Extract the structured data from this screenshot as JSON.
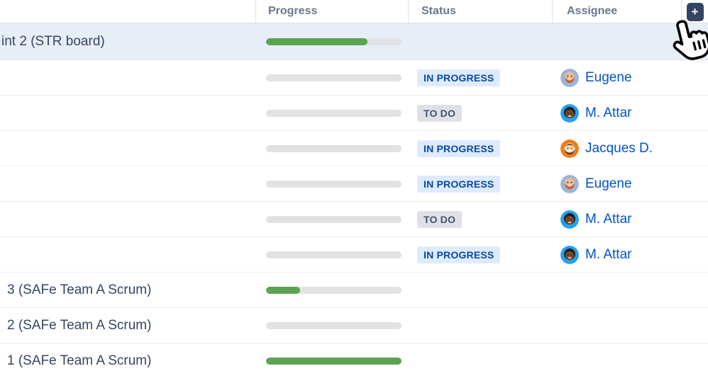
{
  "header": {
    "columns": {
      "name": "",
      "progress": "Progress",
      "status": "Status",
      "assignee": "Assignee"
    },
    "add_button_label": "+"
  },
  "rows": [
    {
      "type": "sprint",
      "label": "int 2 (STR board)",
      "progress": 75,
      "selected": true
    },
    {
      "type": "issue",
      "progress": 0,
      "status": "IN PROGRESS",
      "assignee": "Eugene"
    },
    {
      "type": "issue",
      "progress": 0,
      "status": "TO DO",
      "assignee": "M. Attar"
    },
    {
      "type": "issue",
      "progress": 0,
      "status": "IN PROGRESS",
      "assignee": "Jacques D."
    },
    {
      "type": "issue",
      "progress": 0,
      "status": "IN PROGRESS",
      "assignee": "Eugene"
    },
    {
      "type": "issue",
      "progress": 0,
      "status": "TO DO",
      "assignee": "M. Attar"
    },
    {
      "type": "issue",
      "progress": 0,
      "status": "IN PROGRESS",
      "assignee": "M. Attar"
    },
    {
      "type": "sprint",
      "label": "3 (SAFe Team A Scrum)",
      "progress": 25
    },
    {
      "type": "sprint",
      "label": "2 (SAFe Team A Scrum)",
      "progress": 0
    },
    {
      "type": "sprint",
      "label": "1 (SAFe Team A Scrum)",
      "progress": 100
    }
  ],
  "colors": {
    "progress_fill": "#5ba352",
    "progress_track": "#e2e2e4",
    "selected_row_bg": "#e8eef8",
    "badge_in_progress_bg": "#deebff",
    "badge_in_progress_text": "#0747a6",
    "badge_todo_bg": "#dfe1e6",
    "badge_todo_text": "#42526e",
    "assignee_link": "#0052cc",
    "add_button_bg": "#344563",
    "header_text": "#6b778c",
    "avatar_eugene_bg": "#9db4d8",
    "avatar_mattar_bg": "#21a1f1",
    "avatar_jacques_bg": "#ee7d15"
  }
}
